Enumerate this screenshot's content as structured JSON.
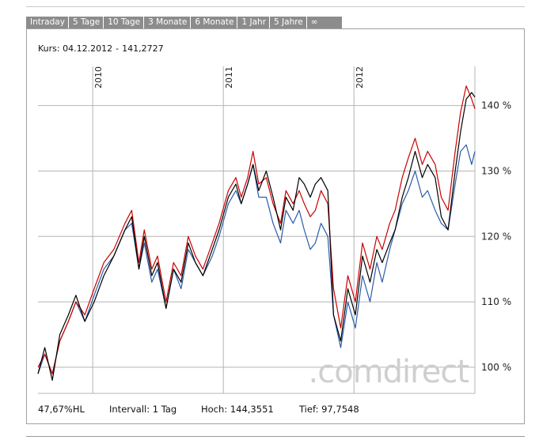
{
  "tabs": [
    {
      "label": "Intraday"
    },
    {
      "label": "5 Tage"
    },
    {
      "label": "10 Tage"
    },
    {
      "label": "3 Monate"
    },
    {
      "label": "6 Monate"
    },
    {
      "label": "1 Jahr"
    },
    {
      "label": "5 Jahre"
    },
    {
      "label": "∞"
    }
  ],
  "kurs": {
    "label": "Kurs:",
    "date": "04.12.2012",
    "separator": "-",
    "value": "141,2727"
  },
  "watermark": ".comdirect",
  "footer": {
    "performance": "47,67%HL",
    "interval": "Intervall: 1 Tag",
    "high": "Hoch: 144,3551",
    "low": "Tief: 97,7548"
  },
  "colors": {
    "series_black": "#000000",
    "series_red": "#cc0000",
    "series_blue": "#2a5caa",
    "grid": "#b4b4b4"
  },
  "chart_data": {
    "type": "line",
    "title": "",
    "xlabel": "",
    "ylabel": "",
    "y_unit": "%",
    "ylim": [
      96,
      146
    ],
    "xlim": [
      "2009-08-01",
      "2012-12-04"
    ],
    "x_ticks": [
      {
        "date": "2010-01-01",
        "label": "2010"
      },
      {
        "date": "2011-01-01",
        "label": "2011"
      },
      {
        "date": "2012-01-01",
        "label": "2012"
      }
    ],
    "y_ticks": [
      {
        "value": 100,
        "label": "100 %"
      },
      {
        "value": 110,
        "label": "110 %"
      },
      {
        "value": 120,
        "label": "120 %"
      },
      {
        "value": 130,
        "label": "130 %"
      },
      {
        "value": 140,
        "label": "140 %"
      }
    ],
    "grid": true,
    "series": [
      {
        "color": "#000000",
        "points": [
          [
            "2009-08-01",
            99
          ],
          [
            "2009-08-20",
            103
          ],
          [
            "2009-09-10",
            98
          ],
          [
            "2009-10-01",
            105
          ],
          [
            "2009-10-25",
            108
          ],
          [
            "2009-11-15",
            111
          ],
          [
            "2009-12-10",
            107
          ],
          [
            "2010-01-05",
            110
          ],
          [
            "2010-02-01",
            114
          ],
          [
            "2010-03-01",
            117
          ],
          [
            "2010-04-01",
            121
          ],
          [
            "2010-04-20",
            123
          ],
          [
            "2010-05-10",
            115
          ],
          [
            "2010-05-25",
            120
          ],
          [
            "2010-06-15",
            114
          ],
          [
            "2010-07-01",
            116
          ],
          [
            "2010-07-25",
            109
          ],
          [
            "2010-08-15",
            115
          ],
          [
            "2010-09-05",
            113
          ],
          [
            "2010-09-25",
            119
          ],
          [
            "2010-10-15",
            116
          ],
          [
            "2010-11-05",
            114
          ],
          [
            "2010-12-01",
            118
          ],
          [
            "2010-12-20",
            121
          ],
          [
            "2011-01-15",
            126
          ],
          [
            "2011-02-05",
            128
          ],
          [
            "2011-02-20",
            125
          ],
          [
            "2011-03-10",
            128
          ],
          [
            "2011-03-25",
            131
          ],
          [
            "2011-04-10",
            127
          ],
          [
            "2011-05-01",
            130
          ],
          [
            "2011-05-20",
            126
          ],
          [
            "2011-06-10",
            121
          ],
          [
            "2011-06-25",
            126
          ],
          [
            "2011-07-15",
            124
          ],
          [
            "2011-08-01",
            129
          ],
          [
            "2011-08-15",
            128
          ],
          [
            "2011-09-01",
            126
          ],
          [
            "2011-09-15",
            128
          ],
          [
            "2011-10-01",
            129
          ],
          [
            "2011-10-20",
            127
          ],
          [
            "2011-11-05",
            108
          ],
          [
            "2011-11-25",
            104
          ],
          [
            "2011-12-15",
            112
          ],
          [
            "2012-01-05",
            108
          ],
          [
            "2012-01-25",
            117
          ],
          [
            "2012-02-15",
            113
          ],
          [
            "2012-03-05",
            118
          ],
          [
            "2012-03-20",
            116
          ],
          [
            "2012-04-10",
            119
          ],
          [
            "2012-04-25",
            121
          ],
          [
            "2012-05-15",
            126
          ],
          [
            "2012-06-01",
            129
          ],
          [
            "2012-06-20",
            133
          ],
          [
            "2012-07-10",
            129
          ],
          [
            "2012-07-25",
            131
          ],
          [
            "2012-08-15",
            129
          ],
          [
            "2012-09-01",
            123
          ],
          [
            "2012-09-20",
            121
          ],
          [
            "2012-10-10",
            130
          ],
          [
            "2012-10-25",
            136
          ],
          [
            "2012-11-10",
            141
          ],
          [
            "2012-11-25",
            142
          ],
          [
            "2012-12-04",
            141.3
          ]
        ]
      },
      {
        "color": "#cc0000",
        "points": [
          [
            "2009-08-01",
            100
          ],
          [
            "2009-08-20",
            102
          ],
          [
            "2009-09-10",
            99
          ],
          [
            "2009-10-01",
            104
          ],
          [
            "2009-10-25",
            107
          ],
          [
            "2009-11-15",
            110
          ],
          [
            "2009-12-10",
            108
          ],
          [
            "2010-01-05",
            112
          ],
          [
            "2010-02-01",
            116
          ],
          [
            "2010-03-01",
            118
          ],
          [
            "2010-04-01",
            122
          ],
          [
            "2010-04-20",
            124
          ],
          [
            "2010-05-10",
            116
          ],
          [
            "2010-05-25",
            121
          ],
          [
            "2010-06-15",
            115
          ],
          [
            "2010-07-01",
            117
          ],
          [
            "2010-07-25",
            110
          ],
          [
            "2010-08-15",
            116
          ],
          [
            "2010-09-05",
            114
          ],
          [
            "2010-09-25",
            120
          ],
          [
            "2010-10-15",
            117
          ],
          [
            "2010-11-05",
            115
          ],
          [
            "2010-12-01",
            119
          ],
          [
            "2010-12-20",
            122
          ],
          [
            "2011-01-15",
            127
          ],
          [
            "2011-02-05",
            129
          ],
          [
            "2011-02-20",
            126
          ],
          [
            "2011-03-10",
            129
          ],
          [
            "2011-03-25",
            133
          ],
          [
            "2011-04-10",
            128
          ],
          [
            "2011-05-01",
            129
          ],
          [
            "2011-05-20",
            125
          ],
          [
            "2011-06-10",
            122
          ],
          [
            "2011-06-25",
            127
          ],
          [
            "2011-07-15",
            125
          ],
          [
            "2011-08-01",
            127
          ],
          [
            "2011-08-15",
            125
          ],
          [
            "2011-09-01",
            123
          ],
          [
            "2011-09-15",
            124
          ],
          [
            "2011-10-01",
            127
          ],
          [
            "2011-10-20",
            125
          ],
          [
            "2011-11-05",
            112
          ],
          [
            "2011-11-25",
            106
          ],
          [
            "2011-12-15",
            114
          ],
          [
            "2012-01-05",
            110
          ],
          [
            "2012-01-25",
            119
          ],
          [
            "2012-02-15",
            115
          ],
          [
            "2012-03-05",
            120
          ],
          [
            "2012-03-20",
            118
          ],
          [
            "2012-04-10",
            122
          ],
          [
            "2012-04-25",
            124
          ],
          [
            "2012-05-15",
            129
          ],
          [
            "2012-06-01",
            132
          ],
          [
            "2012-06-20",
            135
          ],
          [
            "2012-07-10",
            131
          ],
          [
            "2012-07-25",
            133
          ],
          [
            "2012-08-15",
            131
          ],
          [
            "2012-09-01",
            126
          ],
          [
            "2012-09-20",
            124
          ],
          [
            "2012-10-10",
            133
          ],
          [
            "2012-10-25",
            139
          ],
          [
            "2012-11-10",
            143
          ],
          [
            "2012-11-25",
            141
          ],
          [
            "2012-12-04",
            139.5
          ]
        ]
      },
      {
        "color": "#2a5caa",
        "points": [
          [
            "2009-08-01",
            99
          ],
          [
            "2009-08-20",
            102
          ],
          [
            "2009-09-10",
            99
          ],
          [
            "2009-10-01",
            104
          ],
          [
            "2009-10-25",
            107
          ],
          [
            "2009-11-15",
            110
          ],
          [
            "2009-12-10",
            107
          ],
          [
            "2010-01-05",
            111
          ],
          [
            "2010-02-01",
            115
          ],
          [
            "2010-03-01",
            117
          ],
          [
            "2010-04-01",
            121
          ],
          [
            "2010-04-20",
            122
          ],
          [
            "2010-05-10",
            115
          ],
          [
            "2010-05-25",
            119
          ],
          [
            "2010-06-15",
            113
          ],
          [
            "2010-07-01",
            115
          ],
          [
            "2010-07-25",
            109
          ],
          [
            "2010-08-15",
            115
          ],
          [
            "2010-09-05",
            112
          ],
          [
            "2010-09-25",
            118
          ],
          [
            "2010-10-15",
            116
          ],
          [
            "2010-11-05",
            114
          ],
          [
            "2010-12-01",
            117
          ],
          [
            "2010-12-20",
            120
          ],
          [
            "2011-01-15",
            125
          ],
          [
            "2011-02-05",
            127
          ],
          [
            "2011-02-20",
            125
          ],
          [
            "2011-03-10",
            128
          ],
          [
            "2011-03-25",
            131
          ],
          [
            "2011-04-10",
            126
          ],
          [
            "2011-05-01",
            126
          ],
          [
            "2011-05-20",
            122
          ],
          [
            "2011-06-10",
            119
          ],
          [
            "2011-06-25",
            124
          ],
          [
            "2011-07-15",
            122
          ],
          [
            "2011-08-01",
            124
          ],
          [
            "2011-08-15",
            121
          ],
          [
            "2011-09-01",
            118
          ],
          [
            "2011-09-15",
            119
          ],
          [
            "2011-10-01",
            122
          ],
          [
            "2011-10-20",
            120
          ],
          [
            "2011-11-05",
            108
          ],
          [
            "2011-11-25",
            103
          ],
          [
            "2011-12-15",
            110
          ],
          [
            "2012-01-05",
            106
          ],
          [
            "2012-01-25",
            114
          ],
          [
            "2012-02-15",
            110
          ],
          [
            "2012-03-05",
            116
          ],
          [
            "2012-03-20",
            113
          ],
          [
            "2012-04-10",
            118
          ],
          [
            "2012-04-25",
            121
          ],
          [
            "2012-05-15",
            125
          ],
          [
            "2012-06-01",
            127
          ],
          [
            "2012-06-20",
            130
          ],
          [
            "2012-07-10",
            126
          ],
          [
            "2012-07-25",
            127
          ],
          [
            "2012-08-15",
            124
          ],
          [
            "2012-09-01",
            122
          ],
          [
            "2012-09-20",
            121
          ],
          [
            "2012-10-10",
            128
          ],
          [
            "2012-10-25",
            133
          ],
          [
            "2012-11-10",
            134
          ],
          [
            "2012-11-25",
            131
          ],
          [
            "2012-12-04",
            133
          ]
        ]
      }
    ]
  }
}
